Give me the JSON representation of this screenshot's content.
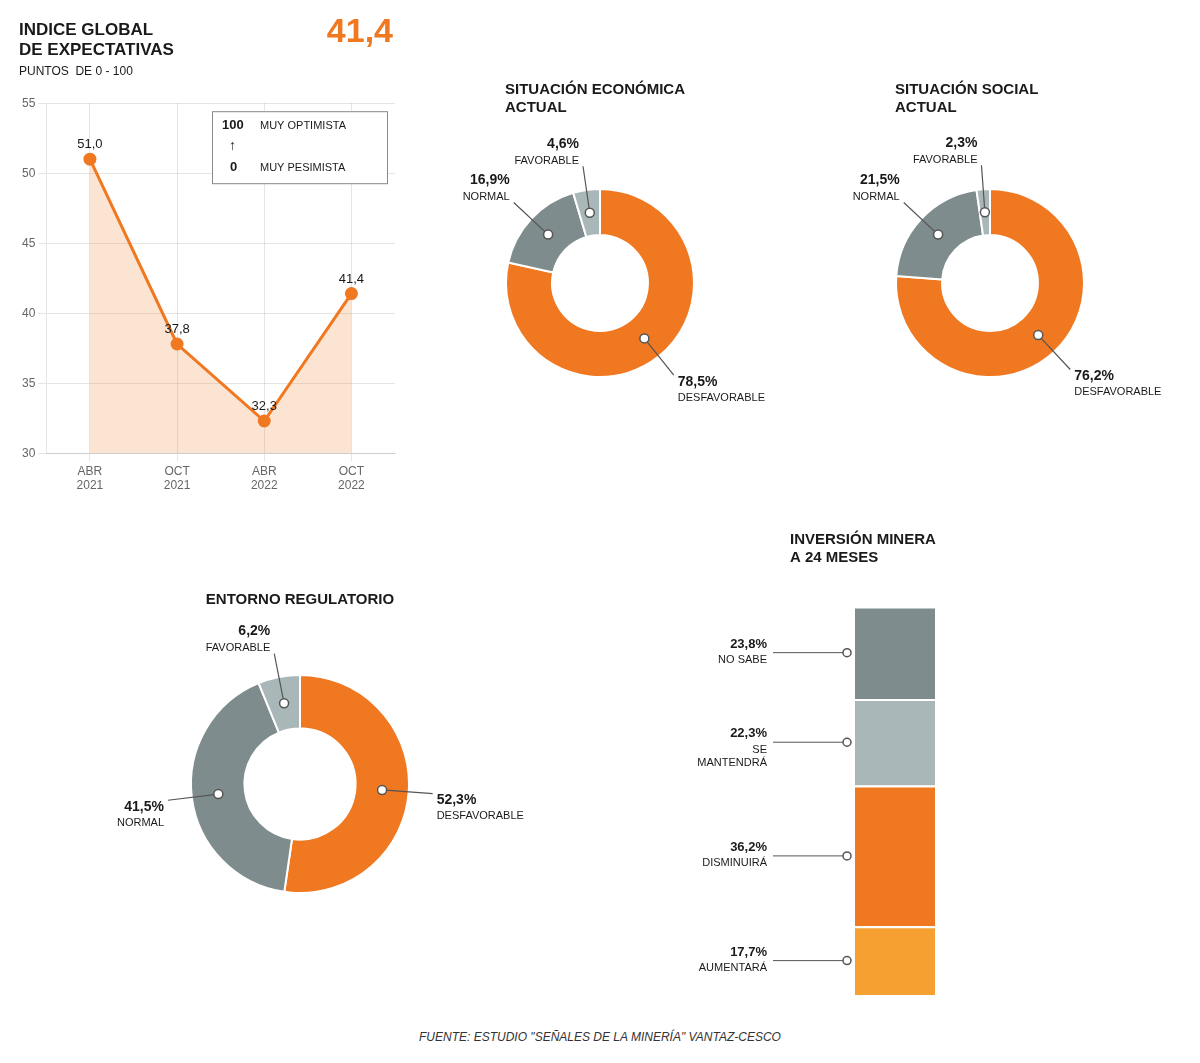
{
  "chart_data": [
    {
      "type": "line",
      "title": "INDICE GLOBAL\nDE EXPECTATIVAS",
      "subtitle": "PUNTOS  DE 0 - 100",
      "annotations": [
        "41,4",
        "100",
        "MUY OPTIMISTA",
        "↑",
        "0",
        "MUY PESIMISTA"
      ],
      "categories": [
        "ABR\n2021",
        "OCT\n2021",
        "ABR\n2022",
        "OCT\n2022"
      ],
      "values": [
        51.0,
        37.8,
        32.3,
        41.4
      ],
      "value_labels": [
        "51,0",
        "37,8",
        "32,3",
        "41,4"
      ],
      "data_labels": true,
      "color": "#f07820",
      "ylim": [
        30,
        55
      ],
      "yticks": [
        30,
        35,
        40,
        45,
        50,
        55
      ],
      "grid": true
    },
    {
      "type": "doughnut",
      "title": "SITUACIÓN ECONÓMICA\nACTUAL",
      "categories": [
        "DESFAVORABLE",
        "NORMAL",
        "FAVORABLE"
      ],
      "values": [
        78.5,
        16.9,
        4.6
      ],
      "value_labels": [
        "78,5%",
        "16,9%",
        "4,6%"
      ],
      "data_labels": true,
      "colors": [
        "#f07820",
        "#7f8c8d",
        "#aab7b8"
      ]
    },
    {
      "type": "doughnut",
      "title": "SITUACIÓN SOCIAL\nACTUAL",
      "categories": [
        "DESFAVORABLE",
        "NORMAL",
        "FAVORABLE"
      ],
      "values": [
        76.2,
        21.5,
        2.3
      ],
      "value_labels": [
        "76,2%",
        "21,5%",
        "2,3%"
      ],
      "data_labels": true,
      "colors": [
        "#f07820",
        "#7f8c8d",
        "#aab7b8"
      ]
    },
    {
      "type": "doughnut",
      "title": "ENTORNO REGULATORIO",
      "categories": [
        "DESFAVORABLE",
        "NORMAL",
        "FAVORABLE"
      ],
      "values": [
        52.3,
        41.5,
        6.2
      ],
      "value_labels": [
        "52,3%",
        "41,5%",
        "6,2%"
      ],
      "data_labels": true,
      "colors": [
        "#f07820",
        "#7f8c8d",
        "#aab7b8"
      ]
    },
    {
      "type": "bar",
      "title": "INVERSIÓN MINERA\nA 24 MESES",
      "stacked": true,
      "categories": [
        null
      ],
      "series": [
        {
          "name": "AUMENTARÁ",
          "color": "#f5a030",
          "values": [
            17.7
          ],
          "value_labels": [
            "17,7%"
          ]
        },
        {
          "name": "DISMINUIRÁ",
          "color": "#f07820",
          "values": [
            36.2
          ],
          "value_labels": [
            "36,2%"
          ]
        },
        {
          "name": "SE\nMANTENDRÁ",
          "color": "#aab7b8",
          "values": [
            22.3
          ],
          "value_labels": [
            "22,3%"
          ]
        },
        {
          "name": "NO SABE",
          "color": "#7f8c8d",
          "values": [
            23.8
          ],
          "value_labels": [
            "23,8%"
          ]
        }
      ],
      "data_labels": true,
      "ylim": [
        0,
        105
      ],
      "tick_labels": false
    }
  ],
  "footer": "FUENTE: ESTUDIO \"SEÑALES DE LA MINERÍA\" VANTAZ-CESCO"
}
